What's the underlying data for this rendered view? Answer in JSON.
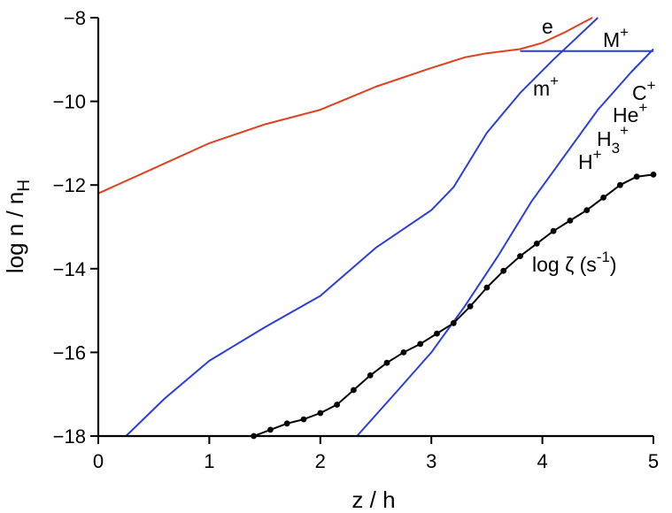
{
  "chart_data": {
    "type": "line",
    "xlabel": "z / h",
    "ylabel": "log n / n",
    "ylabel_sub": "H",
    "xlim": [
      0,
      5
    ],
    "ylim": [
      -18,
      -8
    ],
    "x_ticks": [
      0,
      1,
      2,
      3,
      4,
      5
    ],
    "y_ticks": [
      -18,
      -16,
      -14,
      -12,
      -10,
      -8
    ],
    "x_tick_labels": [
      "0",
      "1",
      "2",
      "3",
      "4",
      "5"
    ],
    "y_tick_labels": [
      "−18",
      "−16",
      "−14",
      "−12",
      "−10",
      "−8"
    ],
    "grid": false,
    "colors": {
      "electron": "#e0401c",
      "ions": "#2a3ed8",
      "zeta": "#000000"
    },
    "labels": {
      "e": "e",
      "M": "M",
      "m": "m",
      "C": "C",
      "He": "He",
      "H3": "H",
      "H3_sub": "3",
      "H": "H",
      "plus": "+",
      "zeta": "log ζ (s",
      "zeta_sup": "-1",
      "zeta_close": ")"
    },
    "series": [
      {
        "key": "e",
        "color": "#e0401c",
        "points": [
          [
            0,
            -12.2
          ],
          [
            0.5,
            -11.6
          ],
          [
            1,
            -11.0
          ],
          [
            1.5,
            -10.55
          ],
          [
            2,
            -10.2
          ],
          [
            2.5,
            -9.65
          ],
          [
            3,
            -9.2
          ],
          [
            3.3,
            -8.95
          ],
          [
            3.5,
            -8.85
          ],
          [
            3.8,
            -8.75
          ],
          [
            4.0,
            -8.6
          ],
          [
            4.2,
            -8.35
          ],
          [
            4.45,
            -8.0
          ]
        ]
      },
      {
        "key": "M+",
        "color": "#2a3ed8",
        "points": [
          [
            3.8,
            -8.8
          ],
          [
            4.2,
            -8.8
          ],
          [
            5.0,
            -8.8
          ]
        ]
      },
      {
        "key": "m+",
        "color": "#2a3ed8",
        "points": [
          [
            0.25,
            -18.0
          ],
          [
            0.6,
            -17.1
          ],
          [
            1.0,
            -16.2
          ],
          [
            1.5,
            -15.4
          ],
          [
            2.0,
            -14.65
          ],
          [
            2.5,
            -13.5
          ],
          [
            3.0,
            -12.6
          ],
          [
            3.2,
            -12.05
          ],
          [
            3.5,
            -10.75
          ],
          [
            3.8,
            -9.8
          ],
          [
            4.1,
            -9.0
          ],
          [
            4.3,
            -8.5
          ],
          [
            4.5,
            -8.0
          ]
        ]
      },
      {
        "key": "C+ He+ H3+ H+",
        "color": "#2a3ed8",
        "points": [
          [
            2.33,
            -18.0
          ],
          [
            2.7,
            -16.9
          ],
          [
            3.0,
            -16.0
          ],
          [
            3.3,
            -14.9
          ],
          [
            3.6,
            -13.7
          ],
          [
            3.9,
            -12.4
          ],
          [
            4.2,
            -11.3
          ],
          [
            4.5,
            -10.2
          ],
          [
            4.8,
            -9.3
          ],
          [
            5.0,
            -8.75
          ]
        ]
      },
      {
        "key": "zeta",
        "color": "#000000",
        "markers": true,
        "points": [
          [
            1.4,
            -18.0
          ],
          [
            1.55,
            -17.85
          ],
          [
            1.7,
            -17.7
          ],
          [
            1.85,
            -17.6
          ],
          [
            2.0,
            -17.45
          ],
          [
            2.15,
            -17.25
          ],
          [
            2.3,
            -16.9
          ],
          [
            2.45,
            -16.55
          ],
          [
            2.6,
            -16.25
          ],
          [
            2.75,
            -16.0
          ],
          [
            2.9,
            -15.8
          ],
          [
            3.05,
            -15.55
          ],
          [
            3.2,
            -15.3
          ],
          [
            3.35,
            -14.9
          ],
          [
            3.5,
            -14.45
          ],
          [
            3.65,
            -14.05
          ],
          [
            3.8,
            -13.7
          ],
          [
            3.95,
            -13.4
          ],
          [
            4.1,
            -13.1
          ],
          [
            4.25,
            -12.85
          ],
          [
            4.4,
            -12.6
          ],
          [
            4.55,
            -12.3
          ],
          [
            4.7,
            -12.0
          ],
          [
            4.85,
            -11.8
          ],
          [
            5.0,
            -11.75
          ]
        ]
      }
    ]
  }
}
